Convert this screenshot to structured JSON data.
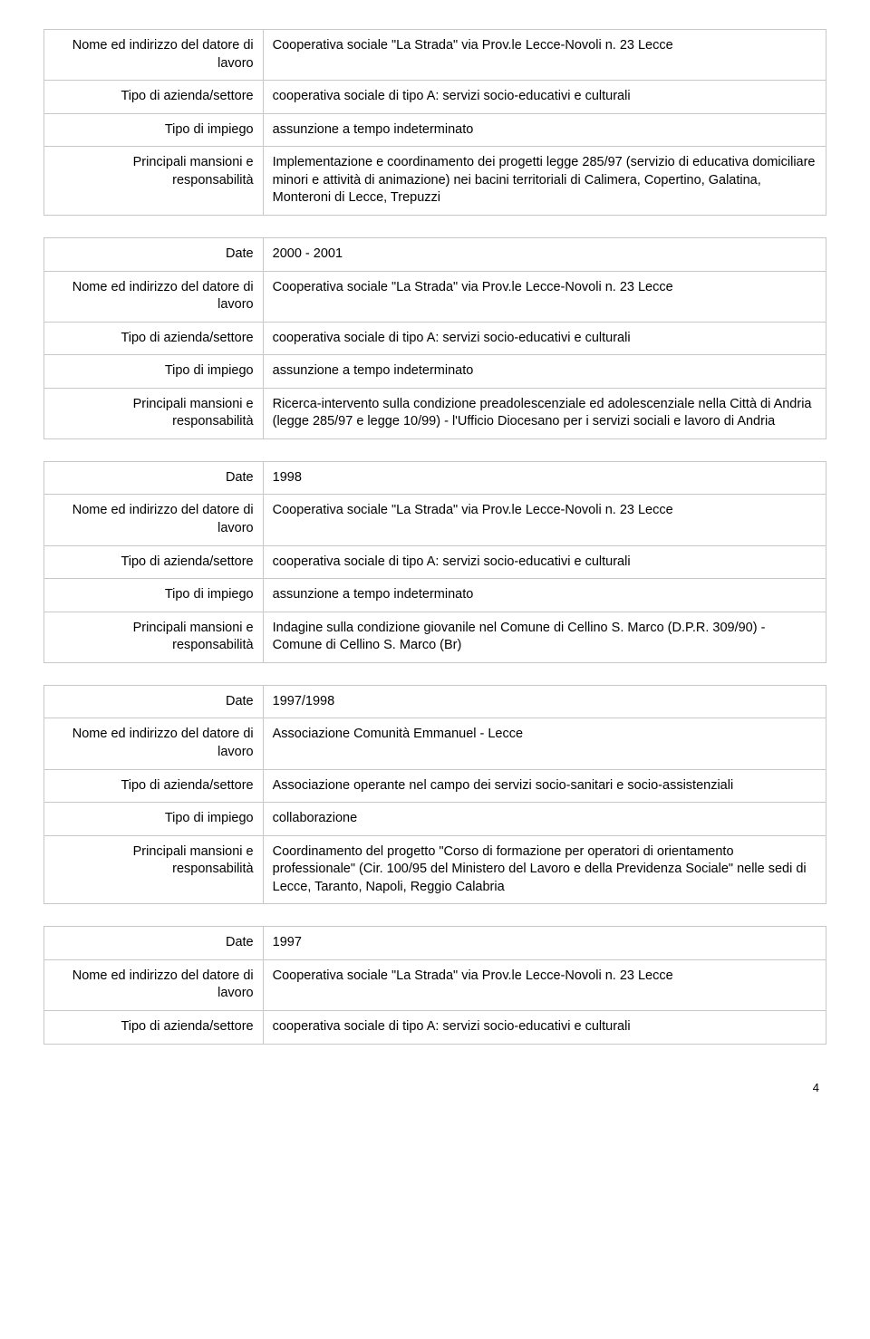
{
  "labels": {
    "date": "Date",
    "employer": "Nome ed indirizzo del datore di lavoro",
    "sector": "Tipo di azienda/settore",
    "employment": "Tipo di impiego",
    "duties": "Principali mansioni e responsabilità"
  },
  "blocks": [
    {
      "date": null,
      "employer": "Cooperativa sociale \"La Strada\" via Prov.le Lecce-Novoli n. 23 Lecce",
      "sector": "cooperativa sociale di tipo A: servizi socio-educativi e culturali",
      "employment": "assunzione a tempo indeterminato",
      "duties": "Implementazione e coordinamento dei progetti legge 285/97 (servizio di educativa domiciliare minori e attività di animazione) nei bacini territoriali di Calimera, Copertino, Galatina, Monteroni di Lecce, Trepuzzi"
    },
    {
      "date": "2000 - 2001",
      "employer": "Cooperativa sociale \"La Strada\" via Prov.le Lecce-Novoli n. 23 Lecce",
      "sector": "cooperativa sociale di tipo A: servizi socio-educativi e culturali",
      "employment": "assunzione a tempo indeterminato",
      "duties": "Ricerca-intervento sulla condizione preadolescenziale ed adolescenziale nella Città di Andria (legge 285/97 e legge 10/99) - l'Ufficio Diocesano per i servizi sociali e lavoro di Andria"
    },
    {
      "date": "1998",
      "employer": "Cooperativa sociale \"La Strada\" via Prov.le Lecce-Novoli n. 23 Lecce",
      "sector": "cooperativa sociale di tipo A: servizi socio-educativi e culturali",
      "employment": "assunzione a tempo indeterminato",
      "duties": "Indagine sulla condizione giovanile nel Comune di Cellino S. Marco (D.P.R. 309/90) - Comune di Cellino S. Marco (Br)"
    },
    {
      "date": "1997/1998",
      "employer": "Associazione Comunità Emmanuel - Lecce",
      "sector": "Associazione operante nel campo dei servizi socio-sanitari e socio-assistenziali",
      "employment": "collaborazione",
      "duties": "Coordinamento del progetto \"Corso di formazione per operatori di orientamento professionale\" (Cir. 100/95 del Ministero del Lavoro e della Previdenza Sociale\" nelle sedi di Lecce, Taranto, Napoli, Reggio Calabria"
    },
    {
      "date": "1997",
      "employer": "Cooperativa sociale \"La Strada\" via Prov.le Lecce-Novoli n. 23  Lecce",
      "sector": "cooperativa sociale di tipo A: servizi socio-educativi e culturali",
      "employment": null,
      "duties": null
    }
  ],
  "page_number": "4"
}
